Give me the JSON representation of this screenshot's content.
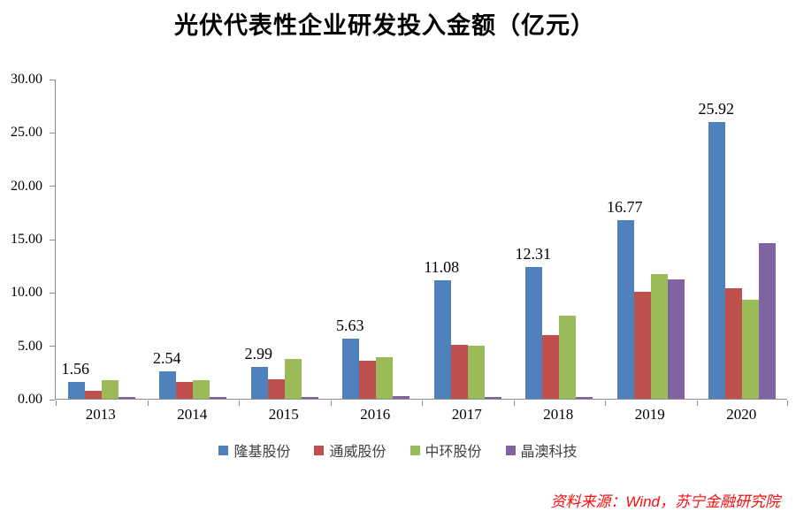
{
  "title": "光伏代表性企业研发投入金额（亿元）",
  "source_note": "资料来源：Wind，苏宁金融研究院",
  "colors": {
    "axis": "#8c8c8c",
    "series_blue": "#4F81BD",
    "series_red": "#C0504D",
    "series_green": "#9BBB59",
    "series_purple": "#8064A2",
    "source_text": "#fb0d0d"
  },
  "chart_data": {
    "type": "bar",
    "title": "光伏代表性企业研发投入金额（亿元）",
    "xlabel": "",
    "ylabel": "",
    "categories": [
      "2013",
      "2014",
      "2015",
      "2016",
      "2017",
      "2018",
      "2019",
      "2020"
    ],
    "series": [
      {
        "name": "隆基股份",
        "color": "#4F81BD",
        "values": [
          1.56,
          2.54,
          2.99,
          5.63,
          11.08,
          12.31,
          16.77,
          25.92
        ]
      },
      {
        "name": "通威股份",
        "color": "#C0504D",
        "values": [
          0.78,
          1.55,
          1.85,
          3.6,
          5.05,
          6.0,
          10.0,
          10.4
        ]
      },
      {
        "name": "中环股份",
        "color": "#9BBB59",
        "values": [
          1.78,
          1.78,
          3.7,
          3.9,
          4.95,
          7.75,
          11.7,
          9.3
        ]
      },
      {
        "name": "晶澳科技",
        "color": "#8064A2",
        "values": [
          0.15,
          0.1,
          0.1,
          0.25,
          0.18,
          0.18,
          11.2,
          14.6
        ]
      }
    ],
    "data_labels_series": "隆基股份",
    "data_labels": [
      "1.56",
      "2.54",
      "2.99",
      "5.63",
      "11.08",
      "12.31",
      "16.77",
      "25.92"
    ],
    "ylim": [
      0,
      30
    ],
    "ytick_step": 5,
    "ytick_labels": [
      "0.00",
      "5.00",
      "10.00",
      "15.00",
      "20.00",
      "25.00",
      "30.00"
    ],
    "grid": false,
    "legend_position": "bottom"
  }
}
